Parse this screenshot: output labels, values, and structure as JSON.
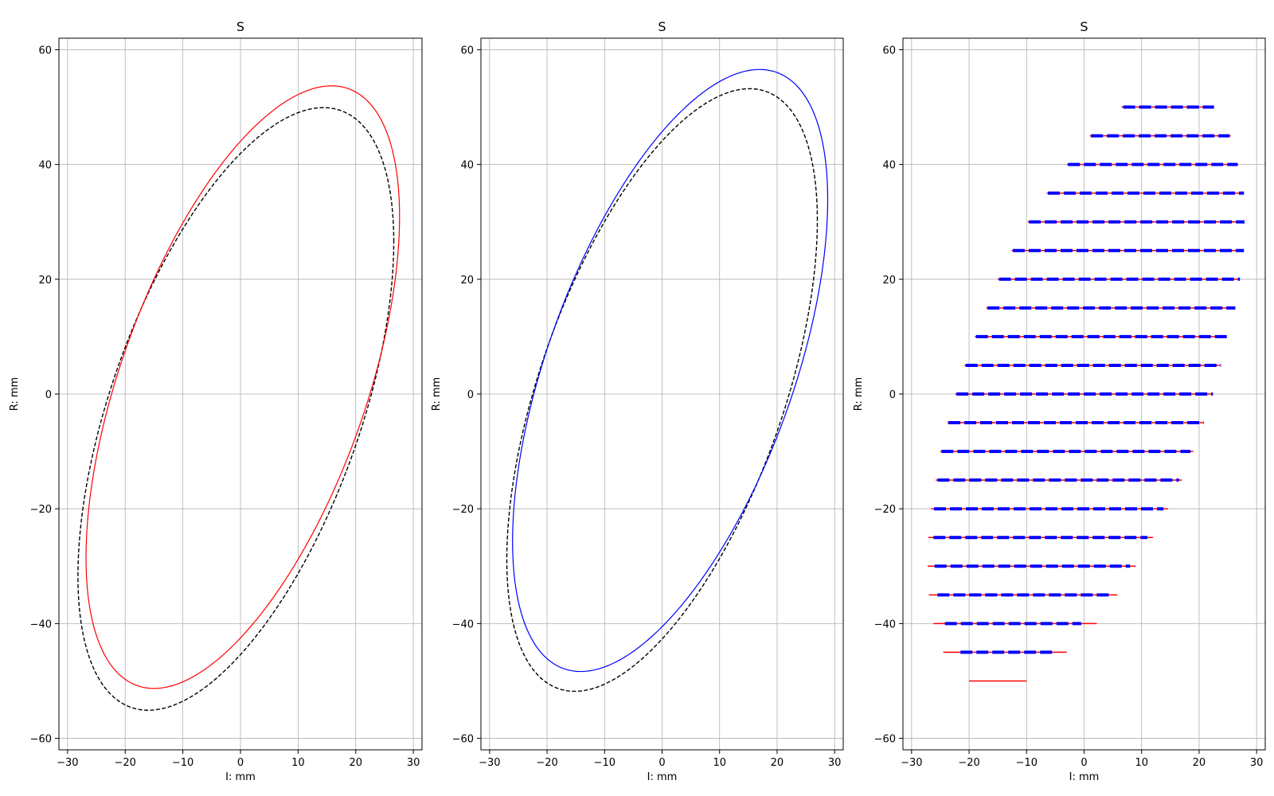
{
  "chart_data": [
    {
      "type": "line",
      "title": "S",
      "xlabel": "I: mm",
      "ylabel": "R: mm",
      "xlim": [
        -31.5,
        31.5
      ],
      "ylim": [
        -62,
        62
      ],
      "xticks": [
        -30,
        -20,
        -10,
        0,
        10,
        20,
        30
      ],
      "yticks": [
        -60,
        -40,
        -20,
        0,
        20,
        40,
        60
      ],
      "xtick_labels": [
        "−30",
        "−20",
        "−10",
        "0",
        "10",
        "20",
        "30"
      ],
      "ytick_labels": [
        "−60",
        "−40",
        "−20",
        "0",
        "20",
        "40",
        "60"
      ],
      "grid": true,
      "series": [
        {
          "color": "#000000",
          "style": "dashed",
          "shape": "ellipse",
          "center": [
            -0.8,
            -2.6
          ],
          "x_extent": [
            -28.2,
            26.6
          ],
          "y_extent": [
            -55.1,
            49.9
          ],
          "x_at_top": 14.4,
          "x_at_bottom": -16.0
        },
        {
          "color": "#ff0000",
          "style": "solid",
          "shape": "ellipse",
          "center": [
            0.4,
            1.2
          ],
          "x_extent": [
            -26.8,
            27.6
          ],
          "y_extent": [
            -51.3,
            53.7
          ],
          "x_at_top": 15.7,
          "x_at_bottom": -15.1
        }
      ]
    },
    {
      "type": "line",
      "title": "S",
      "xlabel": "I: mm",
      "ylabel": "R: mm",
      "xlim": [
        -31.5,
        31.5
      ],
      "ylim": [
        -62,
        62
      ],
      "xticks": [
        -30,
        -20,
        -10,
        0,
        10,
        20,
        30
      ],
      "yticks": [
        -60,
        -40,
        -20,
        0,
        20,
        40,
        60
      ],
      "xtick_labels": [
        "−30",
        "−20",
        "−10",
        "0",
        "10",
        "20",
        "30"
      ],
      "ytick_labels": [
        "−60",
        "−40",
        "−20",
        "0",
        "20",
        "40",
        "60"
      ],
      "grid": true,
      "series": [
        {
          "color": "#000000",
          "style": "dashed",
          "shape": "ellipse",
          "center": [
            0.0,
            0.7
          ],
          "x_extent": [
            -27.0,
            27.0
          ],
          "y_extent": [
            -51.8,
            53.2
          ],
          "x_at_top": 15.4,
          "x_at_bottom": -15.0
        },
        {
          "color": "#0000ff",
          "style": "solid",
          "shape": "ellipse",
          "center": [
            1.4,
            4.1
          ],
          "x_extent": [
            -26.0,
            28.8
          ],
          "y_extent": [
            -48.3,
            56.6
          ],
          "x_at_top": 17.1,
          "x_at_bottom": -14.0
        }
      ]
    },
    {
      "type": "line",
      "title": "S",
      "xlabel": "I: mm",
      "ylabel": "R: mm",
      "xlim": [
        -31.5,
        31.5
      ],
      "ylim": [
        -62,
        62
      ],
      "xticks": [
        -30,
        -20,
        -10,
        0,
        10,
        20,
        30
      ],
      "yticks": [
        -60,
        -40,
        -20,
        0,
        20,
        40,
        60
      ],
      "xtick_labels": [
        "−30",
        "−20",
        "−10",
        "0",
        "10",
        "20",
        "30"
      ],
      "ytick_labels": [
        "−60",
        "−40",
        "−20",
        "0",
        "20",
        "40",
        "60"
      ],
      "grid": true,
      "series": [
        {
          "color": "#ff0000",
          "style": "solid",
          "segments": [
            {
              "y": 50,
              "x": [
                6.5,
                22.5
              ]
            },
            {
              "y": 45,
              "x": [
                1.0,
                25.5
              ]
            },
            {
              "y": 40,
              "x": [
                -3.0,
                26.8
              ]
            },
            {
              "y": 35,
              "x": [
                -6.5,
                27.5
              ]
            },
            {
              "y": 30,
              "x": [
                -9.8,
                27.7
              ]
            },
            {
              "y": 25,
              "x": [
                -12.6,
                27.5
              ]
            },
            {
              "y": 20,
              "x": [
                -15.0,
                27.0
              ]
            },
            {
              "y": 15,
              "x": [
                -17.0,
                26.0
              ]
            },
            {
              "y": 10,
              "x": [
                -19.0,
                24.8
              ]
            },
            {
              "y": 5,
              "x": [
                -20.8,
                23.7
              ]
            },
            {
              "y": 0,
              "x": [
                -22.4,
                22.2
              ]
            },
            {
              "y": -5,
              "x": [
                -23.8,
                20.7
              ]
            },
            {
              "y": -10,
              "x": [
                -25.0,
                19.0
              ]
            },
            {
              "y": -15,
              "x": [
                -25.8,
                17.0
              ]
            },
            {
              "y": -20,
              "x": [
                -26.6,
                14.6
              ]
            },
            {
              "y": -25,
              "x": [
                -27.1,
                12.0
              ]
            },
            {
              "y": -30,
              "x": [
                -27.2,
                9.0
              ]
            },
            {
              "y": -35,
              "x": [
                -27.0,
                5.8
              ]
            },
            {
              "y": -40,
              "x": [
                -26.2,
                2.2
              ]
            },
            {
              "y": -45,
              "x": [
                -24.5,
                -3.0
              ]
            },
            {
              "y": -50,
              "x": [
                -20.0,
                -10.0
              ]
            }
          ]
        },
        {
          "color": "#0000ff",
          "style": "dashed",
          "segments": [
            {
              "y": 50,
              "x": [
                6.8,
                22.6
              ]
            },
            {
              "y": 45,
              "x": [
                1.2,
                25.3
              ]
            },
            {
              "y": 40,
              "x": [
                -2.8,
                26.7
              ]
            },
            {
              "y": 35,
              "x": [
                -6.3,
                27.8
              ]
            },
            {
              "y": 30,
              "x": [
                -9.6,
                27.9
              ]
            },
            {
              "y": 25,
              "x": [
                -12.4,
                27.8
              ]
            },
            {
              "y": 20,
              "x": [
                -14.8,
                27.1
              ]
            },
            {
              "y": 15,
              "x": [
                -16.8,
                26.3
              ]
            },
            {
              "y": 10,
              "x": [
                -18.8,
                25.0
              ]
            },
            {
              "y": 5,
              "x": [
                -20.6,
                23.8
              ]
            },
            {
              "y": 0,
              "x": [
                -22.2,
                22.4
              ]
            },
            {
              "y": -5,
              "x": [
                -23.6,
                20.8
              ]
            },
            {
              "y": -10,
              "x": [
                -24.8,
                18.5
              ]
            },
            {
              "y": -15,
              "x": [
                -25.5,
                16.5
              ]
            },
            {
              "y": -20,
              "x": [
                -26.1,
                13.8
              ]
            },
            {
              "y": -25,
              "x": [
                -26.2,
                11.0
              ]
            },
            {
              "y": -30,
              "x": [
                -26.0,
                8.0
              ]
            },
            {
              "y": -35,
              "x": [
                -25.5,
                4.5
              ]
            },
            {
              "y": -40,
              "x": [
                -24.2,
                -0.5
              ]
            },
            {
              "y": -45,
              "x": [
                -21.5,
                -5.5
              ]
            }
          ]
        }
      ]
    }
  ]
}
